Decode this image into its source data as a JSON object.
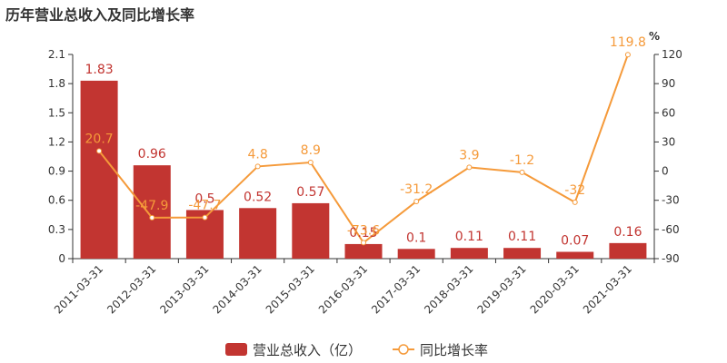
{
  "chart_data": {
    "title": "历年营业总收入及同比增长率",
    "type": "bar+line",
    "categories": [
      "2011-03-31",
      "2012-03-31",
      "2013-03-31",
      "2014-03-31",
      "2015-03-31",
      "2016-03-31",
      "2017-03-31",
      "2018-03-31",
      "2019-03-31",
      "2020-03-31",
      "2021-03-31"
    ],
    "series": [
      {
        "name": "营业总收入（亿）",
        "type": "bar",
        "axis": "left",
        "color": "#c23531",
        "values": [
          1.83,
          0.96,
          0.5,
          0.52,
          0.57,
          0.15,
          0.1,
          0.11,
          0.11,
          0.07,
          0.16
        ],
        "labels": [
          "1.83",
          "0.96",
          "0.5",
          "0.52",
          "0.57",
          "0.15",
          "0.1",
          "0.11",
          "0.11",
          "0.07",
          "0.16"
        ]
      },
      {
        "name": "同比增长率",
        "type": "line",
        "axis": "right",
        "color": "#f59a3a",
        "values": [
          20.7,
          -47.9,
          -47.7,
          4.8,
          8.9,
          -73.6,
          -31.2,
          3.9,
          -1.2,
          -32,
          119.8
        ],
        "labels": [
          "20.7",
          "-47.9",
          "-47.7",
          "4.8",
          "8.9",
          "-73.6",
          "-31.2",
          "3.9",
          "-1.2",
          "-32",
          "119.8"
        ]
      }
    ],
    "y_left": {
      "min": 0,
      "max": 2.1,
      "ticks": [
        "0",
        "0.3",
        "0.6",
        "0.9",
        "1.2",
        "1.5",
        "1.8",
        "2.1"
      ]
    },
    "y_right": {
      "min": -90,
      "max": 120,
      "unit": "%",
      "ticks": [
        "-90",
        "-60",
        "-30",
        "0",
        "30",
        "60",
        "90",
        "120"
      ]
    },
    "grid": false,
    "legend_position": "bottom"
  }
}
